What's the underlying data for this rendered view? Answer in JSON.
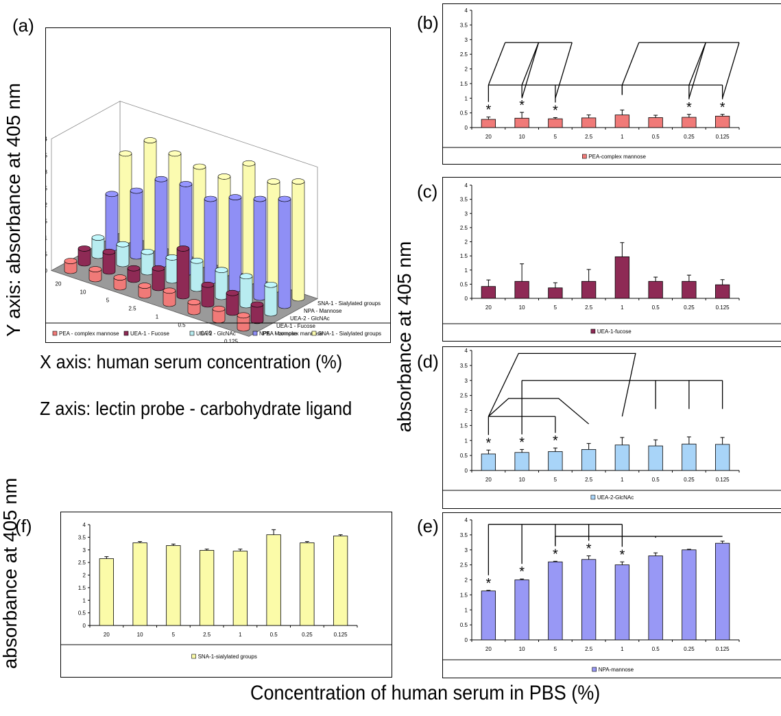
{
  "panels": {
    "a": "(a)",
    "b": "(b)",
    "c": "(c)",
    "d": "(d)",
    "e": "(e)",
    "f": "(f)"
  },
  "labels": {
    "y_axis_left": "Y axis: absorbance at 405 nm",
    "x_axis_note": "X axis: human serum concentration (%)",
    "z_axis_note": "Z axis: lectin probe - carbohydrate ligand",
    "y_right": "absorbance at 405 nm",
    "y_bottom_left": "absorbance at 405 nm",
    "bottom_x": "Concentration of human serum in PBS (%)"
  },
  "colors": {
    "pea": "#f07a78",
    "uea1": "#8e2a55",
    "uea2": "#b8ecf0",
    "npa": "#8f8ff5",
    "sna": "#fbfbb0"
  },
  "chart_data": [
    {
      "id": "a",
      "type": "bar",
      "subtype": "3d-bar",
      "categories": [
        "20",
        "10",
        "5",
        "2.5",
        "1",
        "0.5",
        "0.25",
        "0.125"
      ],
      "depth_labels": [
        "PEA - complex mannose",
        "UEA-1 - Fucose",
        "UEA-2 - GlcNAc",
        "NPA - Mannose",
        "SNA-1 - Sialylated groups"
      ],
      "ylim": [
        0,
        4
      ],
      "yticks": [
        "0",
        "0.5",
        "1",
        "1.5",
        "2",
        "2.5",
        "3",
        "3.5",
        "4"
      ],
      "legend_position": "bottom",
      "series": [
        {
          "name": "PEA - complex mannose",
          "values": [
            0.3,
            0.3,
            0.3,
            0.3,
            0.4,
            0.3,
            0.35,
            0.4
          ]
        },
        {
          "name": "UEA-1 - Fucose",
          "values": [
            0.45,
            0.6,
            0.35,
            0.6,
            1.45,
            0.6,
            0.6,
            0.5
          ]
        },
        {
          "name": "UEA-2 - GlcNAc",
          "values": [
            0.55,
            0.6,
            0.62,
            0.7,
            0.85,
            0.82,
            0.88,
            0.87
          ]
        },
        {
          "name": "NPA - Mannose",
          "values": [
            1.65,
            2.0,
            2.6,
            2.7,
            2.5,
            2.8,
            3.0,
            3.25
          ]
        },
        {
          "name": "SNA-1 - Sialylated groups",
          "values": [
            2.65,
            3.3,
            3.15,
            3.0,
            2.95,
            3.6,
            3.3,
            3.55
          ]
        }
      ]
    },
    {
      "id": "b",
      "type": "bar",
      "categories": [
        "20",
        "10",
        "5",
        "2.5",
        "1",
        "0.5",
        "0.25",
        "0.125"
      ],
      "ylim": [
        0,
        4
      ],
      "yticks": [
        "0",
        "0.5",
        "1",
        "1.5",
        "2",
        "2.5",
        "3",
        "3.5",
        "4"
      ],
      "legend_position": "bottom",
      "color": "#f07a78",
      "series": [
        {
          "name": "PEA-complex mannose",
          "values": [
            0.28,
            0.32,
            0.3,
            0.33,
            0.43,
            0.34,
            0.35,
            0.39
          ],
          "errors": [
            0.08,
            0.2,
            0.04,
            0.1,
            0.17,
            0.08,
            0.1,
            0.06
          ]
        }
      ],
      "stars": [
        "*",
        "*",
        "*",
        "",
        "",
        "",
        "*",
        "*"
      ]
    },
    {
      "id": "c",
      "type": "bar",
      "categories": [
        "20",
        "10",
        "5",
        "2.5",
        "1",
        "0.5",
        "0.25",
        "0.125"
      ],
      "ylim": [
        0,
        4
      ],
      "yticks": [
        "0",
        "0.5",
        "1",
        "1.5",
        "2",
        "2.5",
        "3",
        "3.5",
        "4"
      ],
      "legend_position": "bottom",
      "color": "#8e2a55",
      "series": [
        {
          "name": "UEA-1-fucose",
          "values": [
            0.42,
            0.6,
            0.37,
            0.6,
            1.47,
            0.6,
            0.6,
            0.48
          ],
          "errors": [
            0.23,
            0.62,
            0.18,
            0.42,
            0.5,
            0.15,
            0.22,
            0.18
          ]
        }
      ],
      "stars": [
        "",
        "",
        "",
        "",
        "",
        "",
        "",
        ""
      ]
    },
    {
      "id": "d",
      "type": "bar",
      "categories": [
        "20",
        "10",
        "5",
        "2.5",
        "1",
        "0.5",
        "0.25",
        "0.125"
      ],
      "ylim": [
        0,
        4
      ],
      "yticks": [
        "0",
        "0.5",
        "1",
        "1.5",
        "2",
        "2.5",
        "3",
        "3.5",
        "4"
      ],
      "legend_position": "bottom",
      "color": "#a8d4f8",
      "series": [
        {
          "name": "UEA-2-GlcNAc",
          "values": [
            0.55,
            0.6,
            0.63,
            0.7,
            0.85,
            0.82,
            0.88,
            0.87
          ],
          "errors": [
            0.13,
            0.1,
            0.12,
            0.2,
            0.25,
            0.2,
            0.24,
            0.23
          ]
        }
      ],
      "stars": [
        "*",
        "*",
        "*",
        "",
        "",
        "",
        "",
        ""
      ]
    },
    {
      "id": "e",
      "type": "bar",
      "categories": [
        "20",
        "10",
        "5",
        "2.5",
        "1",
        "0.5",
        "0.25",
        "0.125"
      ],
      "ylim": [
        0,
        4
      ],
      "yticks": [
        "0",
        "0.5",
        "1",
        "1.5",
        "2",
        "2.5",
        "3",
        "3.5",
        "4"
      ],
      "legend_position": "bottom",
      "color": "#9898f5",
      "series": [
        {
          "name": "NPA-mannose",
          "values": [
            1.63,
            2.0,
            2.6,
            2.68,
            2.5,
            2.8,
            3.0,
            3.22
          ],
          "errors": [
            0.02,
            0.03,
            0.02,
            0.12,
            0.1,
            0.1,
            0.02,
            0.07
          ]
        }
      ],
      "stars": [
        "*",
        "*",
        "*",
        "*",
        "*",
        "",
        "",
        ""
      ]
    },
    {
      "id": "f",
      "type": "bar",
      "categories": [
        "20",
        "10",
        "5",
        "2.5",
        "1",
        "0.5",
        "0.25",
        "0.125"
      ],
      "ylim": [
        0,
        4
      ],
      "yticks": [
        "0",
        "0.5",
        "1",
        "1.5",
        "2",
        "2.5",
        "3",
        "3.5",
        "4"
      ],
      "legend_position": "bottom",
      "color": "#fbfba8",
      "series": [
        {
          "name": "SNA-1-sialylated groups",
          "values": [
            2.65,
            3.28,
            3.17,
            2.98,
            2.95,
            3.6,
            3.28,
            3.55
          ],
          "errors": [
            0.08,
            0.05,
            0.06,
            0.05,
            0.08,
            0.2,
            0.05,
            0.05
          ]
        }
      ],
      "stars": [
        "",
        "",
        "",
        "",
        "",
        "",
        "",
        ""
      ]
    }
  ]
}
